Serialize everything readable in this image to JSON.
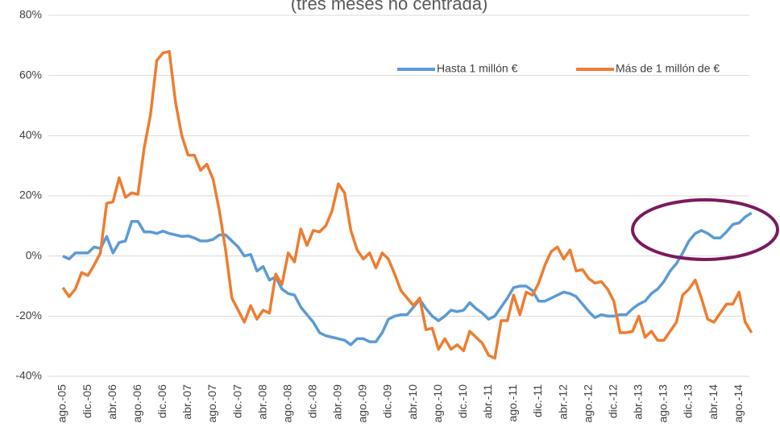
{
  "chart_data": {
    "type": "line",
    "title": "(tres meses no centrada)",
    "categories": [
      "ago.-05",
      null,
      null,
      null,
      "dic.-05",
      null,
      null,
      null,
      "abr.-06",
      null,
      null,
      null,
      "ago.-06",
      null,
      null,
      null,
      "dic.-06",
      null,
      null,
      null,
      "abr.-07",
      null,
      null,
      null,
      "ago.-07",
      null,
      null,
      null,
      "dic.-07",
      null,
      null,
      null,
      "abr.-08",
      null,
      null,
      null,
      "ago.-08",
      null,
      null,
      null,
      "dic.-08",
      null,
      null,
      null,
      "abr.-09",
      null,
      null,
      null,
      "ago.-09",
      null,
      null,
      null,
      "dic.-09",
      null,
      null,
      null,
      "abr.-10",
      null,
      null,
      null,
      "ago.-10",
      null,
      null,
      null,
      "dic.-10",
      null,
      null,
      null,
      "abr.-11",
      null,
      null,
      null,
      "ago.-11",
      null,
      null,
      null,
      "dic.-11",
      null,
      null,
      null,
      "abr.-12",
      null,
      null,
      null,
      "ago.-12",
      null,
      null,
      null,
      "dic.-12",
      null,
      null,
      null,
      "abr.-13",
      null,
      null,
      null,
      "ago.-13",
      null,
      null,
      null,
      "dic.-13",
      null,
      null,
      null,
      "abr.-14",
      null,
      null,
      null,
      "ago.-14",
      null,
      null
    ],
    "series": [
      {
        "name": "Hasta 1 millón €",
        "color": "#5b9bd5",
        "values": [
          0,
          -1,
          1,
          1,
          1,
          3,
          2.5,
          6.5,
          1,
          4.5,
          5,
          11.5,
          11.5,
          8,
          8,
          7.5,
          8.3,
          7.5,
          7,
          6.5,
          6.7,
          6,
          5,
          5,
          5.5,
          7,
          7,
          5,
          3,
          0,
          0.5,
          -5,
          -3.5,
          -8,
          -7,
          -11,
          -12.5,
          -13,
          -17,
          -19.5,
          -22,
          -25.5,
          -26.5,
          -27,
          -27.5,
          -28,
          -29.5,
          -27.5,
          -27.5,
          -28.5,
          -28.5,
          -25.5,
          -21,
          -20,
          -19.5,
          -19.5,
          -17,
          -14.5,
          -17.5,
          -20,
          -21.5,
          -20,
          -18,
          -18.5,
          -18,
          -15.5,
          -17.5,
          -19,
          -21,
          -20,
          -17,
          -14,
          -10.5,
          -10,
          -10,
          -11.5,
          -15,
          -15,
          -14,
          -13,
          -12,
          -12.5,
          -13.5,
          -16,
          -18.5,
          -20.5,
          -19.5,
          -20,
          -20,
          -19.5,
          -19.5,
          -17.5,
          -16,
          -15,
          -12.5,
          -11,
          -8.5,
          -5,
          -2.5,
          1,
          5,
          7.5,
          8.5,
          7.5,
          6,
          6,
          8,
          10.5,
          11,
          13,
          14.3
        ]
      },
      {
        "name": "Más de 1 millón de €",
        "color": "#ed7d31",
        "values": [
          -10.5,
          -13.5,
          -11,
          -5.5,
          -6.5,
          -3,
          1,
          17.5,
          18,
          26,
          19.5,
          21,
          20.5,
          36,
          47,
          65,
          67.5,
          68,
          51,
          40,
          33.5,
          33.5,
          28.5,
          30.5,
          25.5,
          15,
          2,
          -14,
          -18,
          -22,
          -16.5,
          -21,
          -18,
          -19,
          -6,
          -9.5,
          1,
          -2,
          9,
          3.5,
          8.5,
          8,
          10,
          15,
          24,
          21,
          8.5,
          2,
          -1,
          1,
          -4,
          1,
          -1,
          -6,
          -11.5,
          -14,
          -16.5,
          -14,
          -24.5,
          -24,
          -31,
          -27.5,
          -31,
          -29.5,
          -31.5,
          -25,
          -27,
          -29,
          -33,
          -34,
          -21.5,
          -21.5,
          -13,
          -19.5,
          -12,
          -13,
          -9,
          -3,
          1.5,
          3,
          -1,
          2,
          -5,
          -4.5,
          -7.5,
          -9,
          -8.5,
          -11,
          -15,
          -25.5,
          -25.5,
          -25,
          -20,
          -27,
          -25,
          -28,
          -28,
          -25,
          -22,
          -13,
          -11,
          -8,
          -14,
          -21,
          -22,
          -19,
          -16,
          -16,
          -12,
          -22,
          -25.5
        ]
      }
    ],
    "ylim": [
      -40,
      80
    ],
    "yticks": [
      {
        "value": -40,
        "label": "-40%"
      },
      {
        "value": -20,
        "label": "-20%"
      },
      {
        "value": 0,
        "label": "0%"
      },
      {
        "value": 20,
        "label": "20%"
      },
      {
        "value": 40,
        "label": "40%"
      },
      {
        "value": 60,
        "label": "60%"
      },
      {
        "value": 80,
        "label": "80%"
      }
    ],
    "grid": true
  }
}
